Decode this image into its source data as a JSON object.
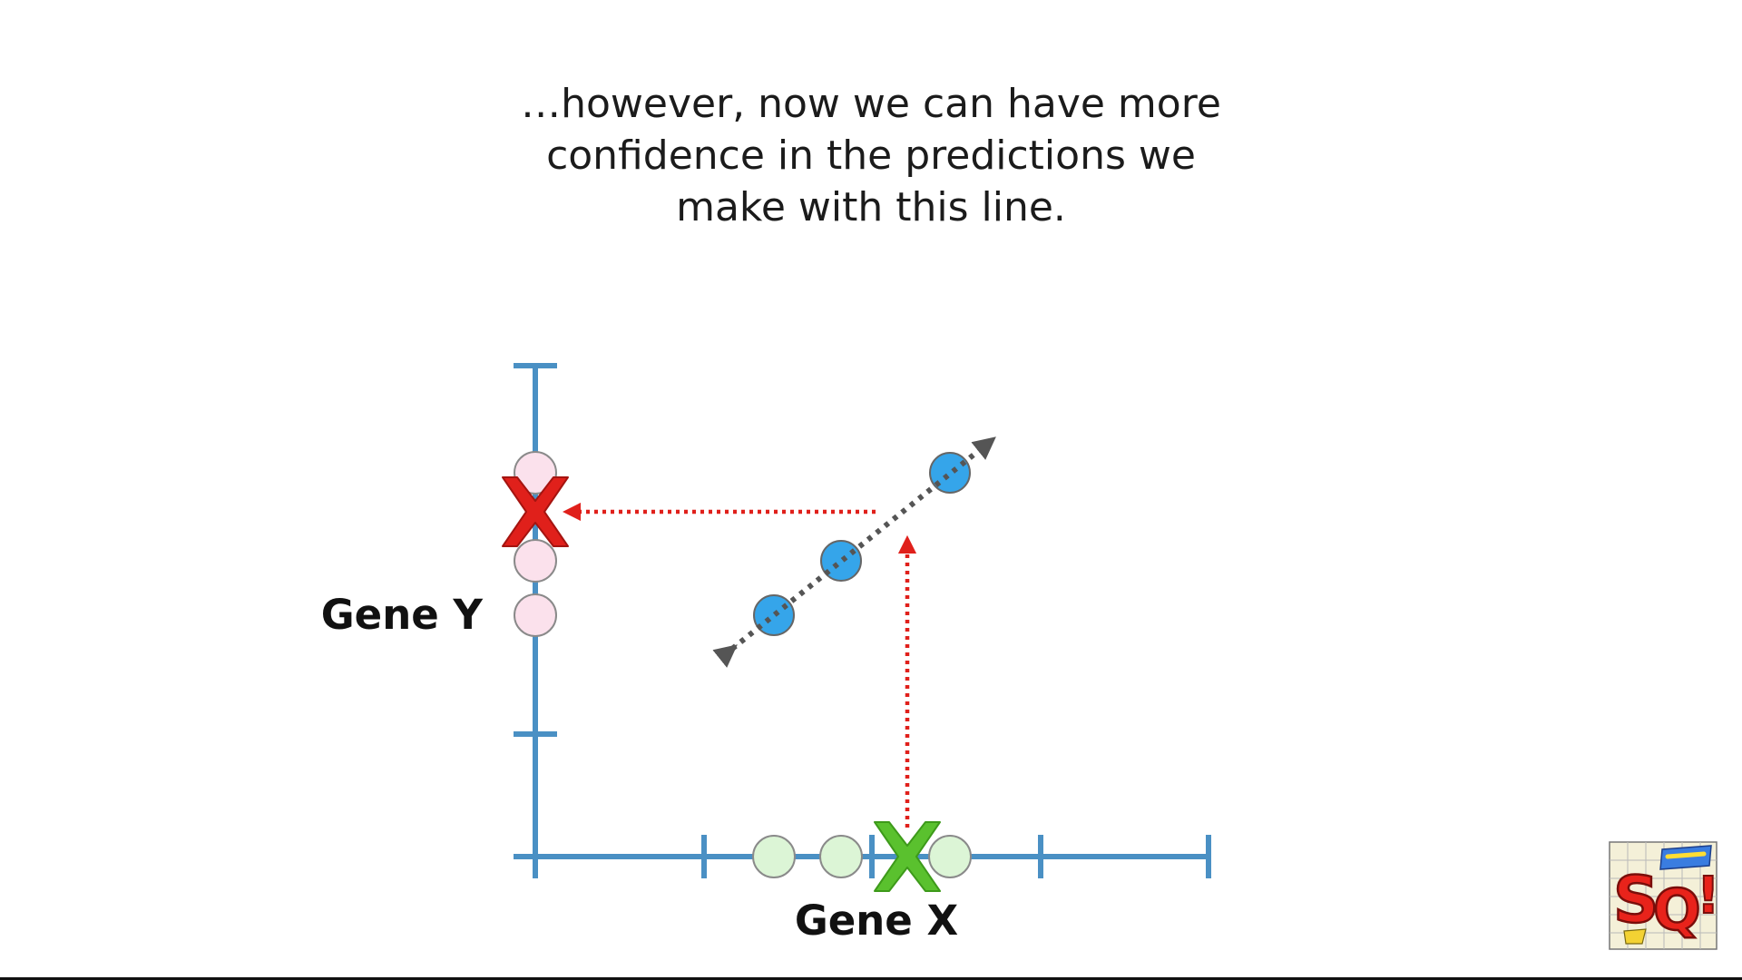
{
  "caption": {
    "line1": "…however, now we can have more",
    "line2": "confidence in the predictions we",
    "line3": "make with this line."
  },
  "axes": {
    "x_label": "Gene X",
    "y_label": "Gene Y"
  },
  "colors": {
    "axis": "#4a90c4",
    "sample_point": "#35a5ea",
    "x_projection": "#dcf5d6",
    "y_projection": "#fbe1ec",
    "arrow_line": "#555555",
    "prediction_arrow": "#e0201b",
    "marker_x": "#5ac12e",
    "marker_y": "#e0201b"
  },
  "icons": {
    "corner_logo": "statquest-logo"
  }
}
